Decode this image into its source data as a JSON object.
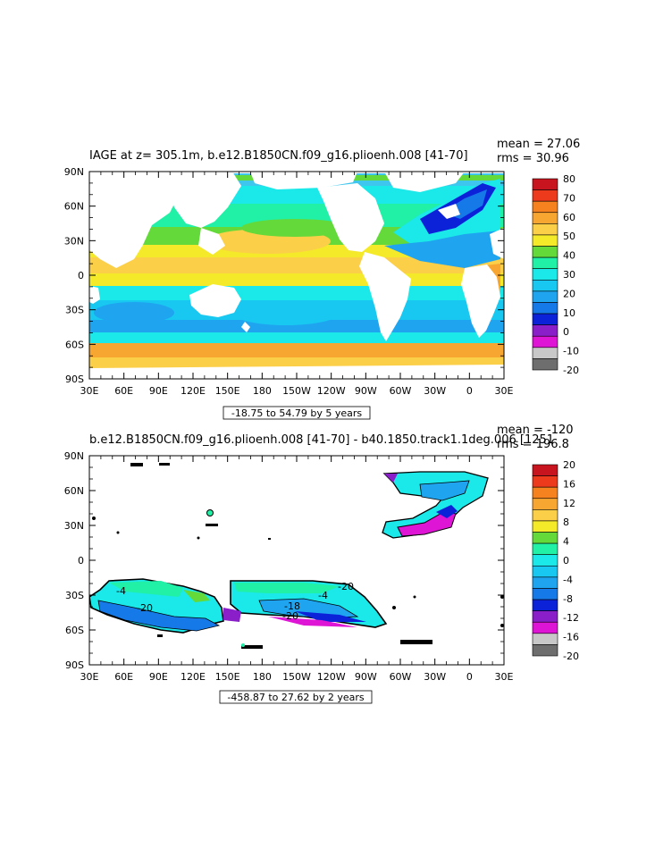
{
  "chart_data": [
    {
      "type": "heatmap",
      "title": "IAGE at z= 305.1m, b.e12.B1850CN.f09_g16.plioenh.008 [41-70]",
      "stats": {
        "mean": "mean = 27.06",
        "rms": "rms = 30.96"
      },
      "info": "-18.75 to 54.79 by 5 years",
      "x_ticks": [
        "30E",
        "60E",
        "90E",
        "120E",
        "150E",
        "180",
        "150W",
        "120W",
        "90W",
        "60W",
        "30W",
        "0",
        "30E"
      ],
      "y_ticks": [
        "90N",
        "60N",
        "30N",
        "0",
        "30S",
        "60S",
        "90S"
      ],
      "colorbar": {
        "labels": [
          "80",
          "70",
          "60",
          "50",
          "40",
          "30",
          "20",
          "10",
          "0",
          "-10",
          "-20"
        ],
        "colors": [
          "#c8141e",
          "#ee3a1c",
          "#f5821e",
          "#f8a632",
          "#fbcf47",
          "#f5ea2a",
          "#63d93a",
          "#21f0a7",
          "#1be8e8",
          "#18c8f0",
          "#1fa4f0",
          "#1679e8",
          "#0c22d8",
          "#8a1fc9",
          "#df15d5",
          "#c8c8c8",
          "#6e6e6e"
        ]
      }
    },
    {
      "type": "heatmap",
      "title": "b.e12.B1850CN.f09_g16.plioenh.008 [41-70] - b40.1850.track1.1deg.006 [1251",
      "stats": {
        "mean": "mean = -120",
        "rms": "rms = 196.8"
      },
      "info": "-458.87 to 27.62 by 2 years",
      "x_ticks": [
        "30E",
        "60E",
        "90E",
        "120E",
        "150E",
        "180",
        "150W",
        "120W",
        "90W",
        "60W",
        "30W",
        "0",
        "30E"
      ],
      "y_ticks": [
        "90N",
        "60N",
        "30N",
        "0",
        "30S",
        "60S",
        "90S"
      ],
      "colorbar": {
        "labels": [
          "20",
          "16",
          "12",
          "8",
          "4",
          "0",
          "-4",
          "-8",
          "-12",
          "-16",
          "-20"
        ],
        "colors": [
          "#c8141e",
          "#ee3a1c",
          "#f5821e",
          "#f8a632",
          "#fbcf47",
          "#f5ea2a",
          "#63d93a",
          "#21f0a7",
          "#1be8e8",
          "#18c8f0",
          "#1fa4f0",
          "#1679e8",
          "#0c22d8",
          "#8a1fc9",
          "#df15d5",
          "#c8c8c8",
          "#6e6e6e"
        ]
      },
      "contour_labels": [
        "-20",
        "-20",
        "-20",
        "-4",
        "-18",
        "-4"
      ]
    }
  ]
}
